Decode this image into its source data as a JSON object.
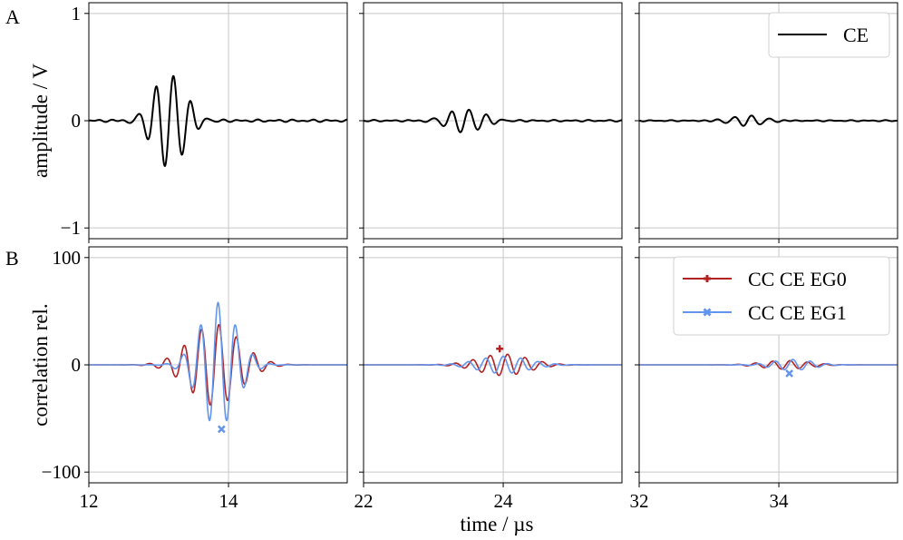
{
  "panel_labels": [
    "A",
    "B"
  ],
  "xlabel": "time / µs",
  "chart_data": [
    {
      "type": "line",
      "panel": "A",
      "ylabel": "amplitude / V",
      "ylim": [
        -1.1,
        1.1
      ],
      "yticks": [
        -1,
        0,
        1
      ],
      "ytick_labels": [
        "−1",
        "0",
        "1"
      ],
      "grid": true,
      "legend": {
        "placement": "top-right",
        "entries": [
          "CE"
        ]
      },
      "x_segments": [
        {
          "xlim": [
            12,
            15.7
          ],
          "tick": 14,
          "tick_label": "12",
          "tick_value": 12,
          "tick2_label": "14"
        },
        {
          "xlim": [
            22,
            25.7
          ],
          "tick": 24
        },
        {
          "xlim": [
            32,
            35.7
          ],
          "tick": 34
        }
      ],
      "series": [
        {
          "name": "CE",
          "color": "#000000",
          "segments": [
            {
              "center": 13.15,
              "amp": 0.44,
              "width": 0.48,
              "freq": 4.0,
              "noise": 0.012
            },
            {
              "center": 23.45,
              "amp": 0.11,
              "width": 0.55,
              "freq": 4.0,
              "noise": 0.008
            },
            {
              "center": 33.55,
              "amp": 0.05,
              "width": 0.55,
              "freq": 4.0,
              "noise": 0.006
            }
          ]
        }
      ]
    },
    {
      "type": "line",
      "panel": "B",
      "ylabel": "correlation rel.",
      "ylim": [
        -110,
        110
      ],
      "yticks": [
        -100,
        0,
        100
      ],
      "ytick_labels": [
        "−100",
        "0",
        "100"
      ],
      "grid": true,
      "legend": {
        "placement": "top-right",
        "entries": [
          "CC CE EG0",
          "CC CE EG1"
        ]
      },
      "x_segments": [
        {
          "xlim": [
            12,
            15.7
          ],
          "tick": 14
        },
        {
          "xlim": [
            22,
            25.7
          ],
          "tick": 24
        },
        {
          "xlim": [
            32,
            35.7
          ],
          "tick": 34
        }
      ],
      "series": [
        {
          "name": "CC CE EG0",
          "color": "#b22222",
          "marker": "plus",
          "segments": [
            {
              "center": 13.8,
              "amp": 38,
              "width": 0.75,
              "freq": 4.0,
              "phase": 0.0
            },
            {
              "center": 24.0,
              "amp": 10,
              "width": 0.75,
              "freq": 4.0,
              "phase": 0.0
            },
            {
              "center": 34.1,
              "amp": 4,
              "width": 0.7,
              "freq": 4.0,
              "phase": 0.0
            }
          ],
          "markers": [
            {
              "x": 23.95,
              "y": 15
            }
          ]
        },
        {
          "name": "CC CE EG1",
          "color": "#6495ed",
          "marker": "x",
          "segments": [
            {
              "center": 13.85,
              "amp": 58,
              "width": 0.55,
              "freq": 4.0,
              "phase": 1.57
            },
            {
              "center": 24.0,
              "amp": 8,
              "width": 0.75,
              "freq": 4.0,
              "phase": 1.57
            },
            {
              "center": 34.2,
              "amp": 5,
              "width": 0.6,
              "freq": 4.0,
              "phase": 1.57
            }
          ],
          "markers": [
            {
              "x": 13.9,
              "y": -60
            },
            {
              "x": 34.15,
              "y": -8
            }
          ]
        }
      ]
    }
  ],
  "x_tick_labels": [
    [
      "12",
      "14"
    ],
    [
      "22",
      "24"
    ],
    [
      "32",
      "34"
    ]
  ]
}
